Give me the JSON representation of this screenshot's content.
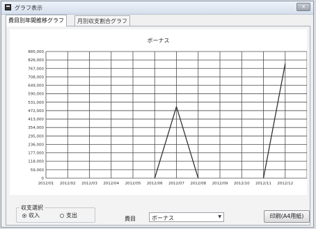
{
  "window": {
    "title": "グラフ表示",
    "close_label": "✕"
  },
  "tabs": [
    {
      "label": "費目別年間推移グラフ",
      "active": true
    },
    {
      "label": "月別収支割合グラフ",
      "active": false
    }
  ],
  "chart_data": {
    "type": "line",
    "title": "ボーナス",
    "categories": [
      "2012/01",
      "2012/02",
      "2012/03",
      "2012/04",
      "2012/05",
      "2012/06",
      "2012/07",
      "2012/08",
      "2012/09",
      "2012/10",
      "2012/11",
      "2012/12"
    ],
    "y_ticks": [
      0,
      59000,
      118000,
      177000,
      236000,
      295000,
      354000,
      413000,
      472000,
      531000,
      590000,
      649000,
      708000,
      767000,
      826000,
      885000
    ],
    "y_tick_labels": [
      "0",
      "59,000",
      "118,000",
      "177,000",
      "236,000",
      "295,000",
      "354,000",
      "413,000",
      "472,000",
      "531,000",
      "590,000",
      "649,000",
      "708,000",
      "767,000",
      "826,000",
      "885,000"
    ],
    "ylim": [
      0,
      885000
    ],
    "series": [
      {
        "values": [
          0,
          0,
          0,
          0,
          0,
          0,
          500000,
          0,
          0,
          0,
          0,
          800000
        ]
      }
    ],
    "segments": [
      {
        "from": 5,
        "to": 6
      },
      {
        "from": 6,
        "to": 7
      },
      {
        "from": 10,
        "to": 11
      }
    ],
    "grid": true
  },
  "controls": {
    "group_label": "収支選択",
    "radio_income": "収入",
    "radio_expense": "支出",
    "income_selected": true,
    "category_label": "費目",
    "category_value": "ボーナス",
    "print_label": "印刷(A4用紙)"
  },
  "colors": {
    "line": "#333333",
    "grid": "#4a4a4a"
  }
}
